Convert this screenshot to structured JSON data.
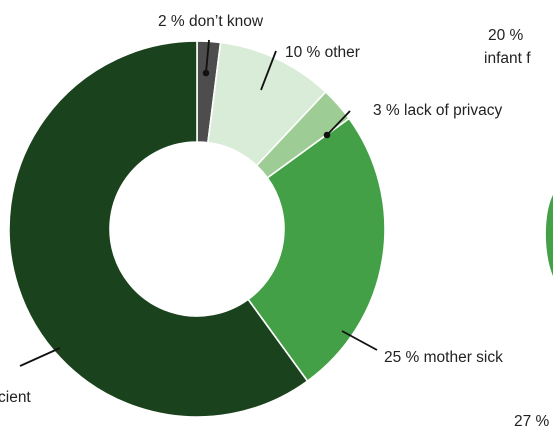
{
  "chart_data": {
    "type": "pie",
    "style": "donut",
    "slices": [
      {
        "value": 2,
        "label": "2 % don’t know",
        "color": "#4d4d4d"
      },
      {
        "value": 10,
        "label": "10 % other",
        "color": "#d9ecd7"
      },
      {
        "value": 3,
        "label": "3 % lack of privacy",
        "color": "#9dcd95"
      },
      {
        "value": 25,
        "label": "25 % mother sick",
        "color": "#44a047"
      },
      {
        "value": 60,
        "label": "cient",
        "color": "#1a421c"
      }
    ],
    "second_chart_fragments": {
      "slice_color": "#44a047",
      "texts": [
        "20 %",
        "infant f",
        "27 %"
      ]
    }
  }
}
